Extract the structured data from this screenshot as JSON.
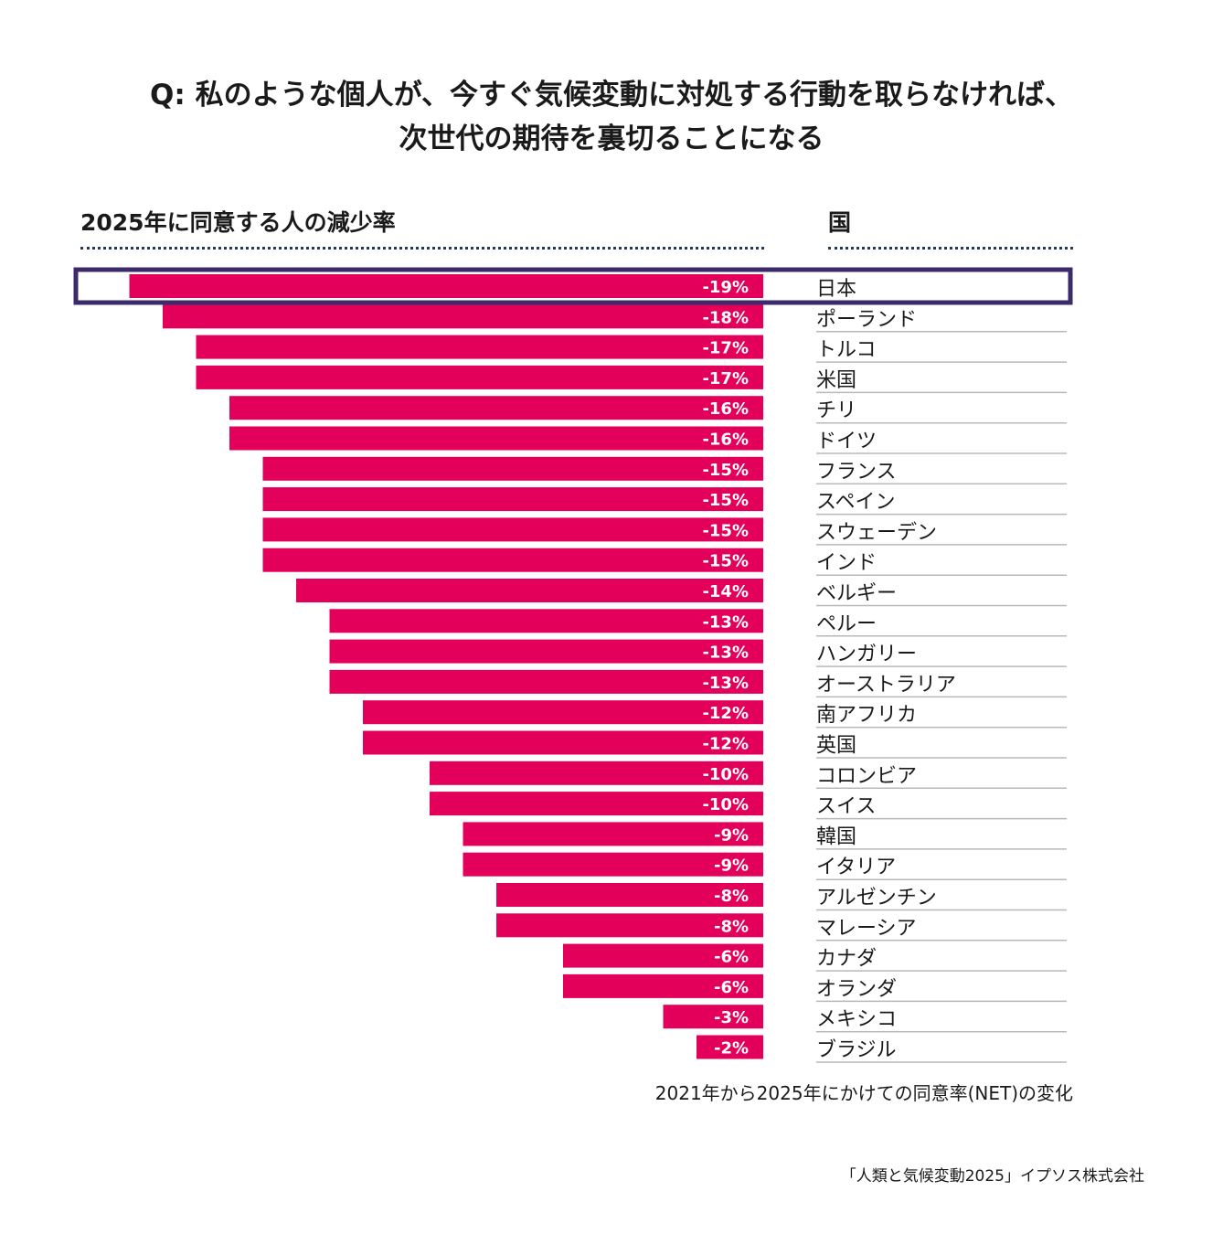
{
  "title": {
    "line1": "Q: 私のような個人が、今すぐ気候変動に対処する行動を取らなければ、",
    "line2": "次世代の期待を裏切ることになる"
  },
  "headers": {
    "left": "2025年に同意する人の減少率",
    "right": "国"
  },
  "footnote": "2021年から2025年にかけての同意率(NET)の変化",
  "source": "「人類と気候変動2025」イプソス株式会社",
  "colors": {
    "bar": "#e2005a",
    "highlight": "#3c2a6b",
    "dots": "#1f3a5a"
  },
  "chart_data": {
    "type": "bar",
    "orientation": "horizontal",
    "title": "Q: 私のような個人が、今すぐ気候変動に対処する行動を取らなければ、次世代の期待を裏切ることになる",
    "xlabel": "2025年に同意する人の減少率",
    "ylabel": "国",
    "highlight": "日本",
    "categories": [
      "日本",
      "ポーランド",
      "トルコ",
      "米国",
      "チリ",
      "ドイツ",
      "フランス",
      "スペイン",
      "スウェーデン",
      "インド",
      "ベルギー",
      "ペルー",
      "ハンガリー",
      "オーストラリア",
      "南アフリカ",
      "英国",
      "コロンビア",
      "スイス",
      "韓国",
      "イタリア",
      "アルゼンチン",
      "マレーシア",
      "カナダ",
      "オランダ",
      "メキシコ",
      "ブラジル"
    ],
    "values": [
      -19,
      -18,
      -17,
      -17,
      -16,
      -16,
      -15,
      -15,
      -15,
      -15,
      -14,
      -13,
      -13,
      -13,
      -12,
      -12,
      -10,
      -10,
      -9,
      -9,
      -8,
      -8,
      -6,
      -6,
      -3,
      -2
    ],
    "labels": [
      "-19%",
      "-18%",
      "-17%",
      "-17%",
      "-16%",
      "-16%",
      "-15%",
      "-15%",
      "-15%",
      "-15%",
      "-14%",
      "-13%",
      "-13%",
      "-13%",
      "-12%",
      "-12%",
      "-10%",
      "-10%",
      "-9%",
      "-9%",
      "-8%",
      "-8%",
      "-6%",
      "-6%",
      "-3%",
      "-2%"
    ],
    "unit": "%"
  }
}
